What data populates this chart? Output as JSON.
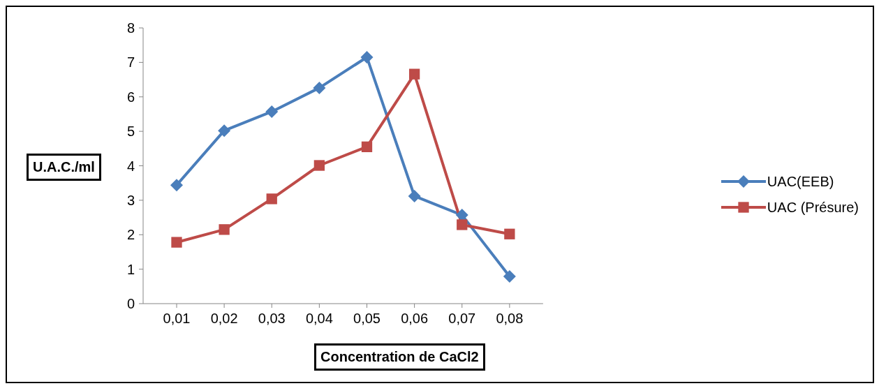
{
  "chart_data": {
    "type": "line",
    "xlabel": "Concentration de CaCl2",
    "ylabel": "U.A.C./ml",
    "categories": [
      "0,01",
      "0,02",
      "0,03",
      "0,04",
      "0,05",
      "0,06",
      "0,07",
      "0,08"
    ],
    "series": [
      {
        "name": "UAC(EEB)",
        "color": "#4a7ebb",
        "marker": "diamond",
        "values": [
          3.44,
          5.02,
          5.57,
          6.26,
          7.15,
          3.12,
          2.57,
          0.79
        ]
      },
      {
        "name": "UAC (Présure)",
        "color": "#be4b48",
        "marker": "square",
        "values": [
          1.78,
          2.15,
          3.04,
          4.01,
          4.55,
          6.66,
          2.29,
          2.02
        ]
      }
    ],
    "ylim": [
      0,
      8
    ],
    "yticks": [
      0,
      1,
      2,
      3,
      4,
      5,
      6,
      7,
      8
    ],
    "grid": false,
    "legend": "right",
    "line_style": "solid"
  }
}
